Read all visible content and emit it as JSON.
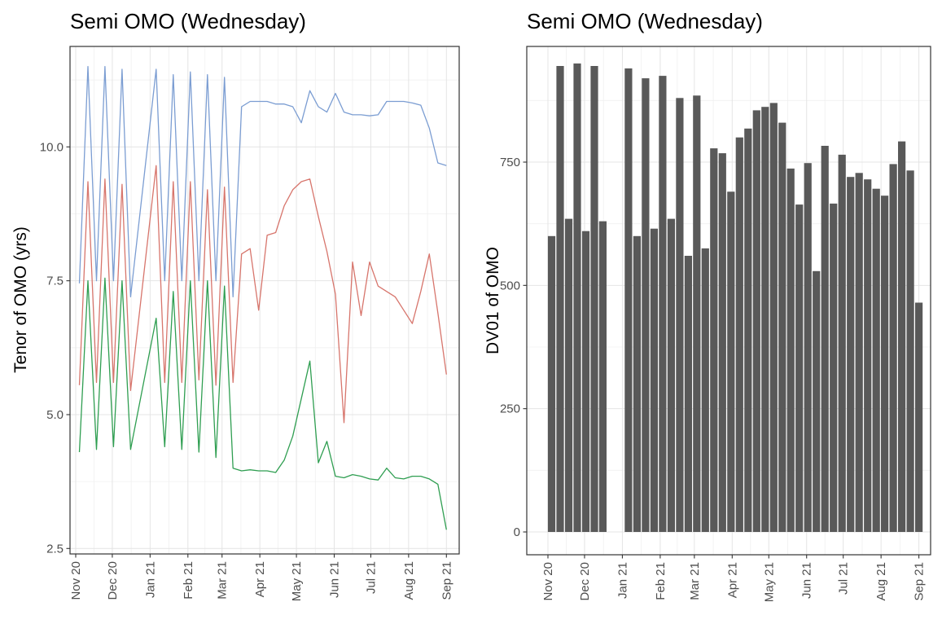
{
  "figure": {
    "background": "#ffffff",
    "panel_border_color": "#333333",
    "grid_major_color": "#e4e4e4",
    "grid_minor_color": "#f0f0f0",
    "tick_color": "#333333",
    "tick_label_color": "#4d4d4d",
    "title_color": "#000000"
  },
  "chart_data": [
    {
      "type": "line",
      "title": "Semi OMO (Wednesday)",
      "ylabel": "Tenor of OMO (yrs)",
      "xlabel": "",
      "legend": "none",
      "grid": true,
      "ytick_labels": [
        "2.5",
        "5.0",
        "7.5",
        "10.0"
      ],
      "ytick_values": [
        2.5,
        5.0,
        7.5,
        10.0
      ],
      "ylim": [
        2.4,
        11.87
      ],
      "x_tick_labels": [
        "Nov 20",
        "Dec 20",
        "Jan 21",
        "Feb 21",
        "Mar 21",
        "Apr 21",
        "May 21",
        "Jun 21",
        "Jul 21",
        "Aug 21",
        "Sep 21"
      ],
      "x_tick_days": [
        0,
        30,
        61,
        92,
        120,
        151,
        181,
        212,
        242,
        273,
        304
      ],
      "x_dates": [
        "2020-11-04",
        "2020-11-11",
        "2020-11-18",
        "2020-11-25",
        "2020-12-02",
        "2020-12-09",
        "2020-12-16",
        "2021-01-06",
        "2021-01-13",
        "2021-01-20",
        "2021-01-27",
        "2021-02-03",
        "2021-02-10",
        "2021-02-17",
        "2021-02-24",
        "2021-03-03",
        "2021-03-10",
        "2021-03-17",
        "2021-03-24",
        "2021-03-31",
        "2021-04-07",
        "2021-04-14",
        "2021-04-21",
        "2021-04-28",
        "2021-05-05",
        "2021-05-12",
        "2021-05-19",
        "2021-05-26",
        "2021-06-02",
        "2021-06-09",
        "2021-06-16",
        "2021-06-23",
        "2021-06-30",
        "2021-07-07",
        "2021-07-14",
        "2021-07-21",
        "2021-07-28",
        "2021-08-04",
        "2021-08-11",
        "2021-08-18",
        "2021-08-25",
        "2021-09-01"
      ],
      "x_days": [
        3,
        10,
        17,
        24,
        31,
        38,
        45,
        66,
        73,
        80,
        87,
        94,
        101,
        108,
        115,
        122,
        129,
        136,
        143,
        150,
        157,
        164,
        171,
        178,
        185,
        192,
        199,
        206,
        213,
        220,
        227,
        234,
        241,
        248,
        255,
        262,
        269,
        276,
        283,
        290,
        297,
        304
      ],
      "series": [
        {
          "name": "blue-line",
          "color": "#7b9dd2",
          "values": [
            7.45,
            11.5,
            7.5,
            11.5,
            7.5,
            11.45,
            7.2,
            11.45,
            7.5,
            11.35,
            7.5,
            11.4,
            7.5,
            11.35,
            7.5,
            11.3,
            7.2,
            10.75,
            10.85,
            10.85,
            10.85,
            10.8,
            10.8,
            10.75,
            10.45,
            11.05,
            10.75,
            10.65,
            11.0,
            10.65,
            10.6,
            10.6,
            10.58,
            10.6,
            10.85,
            10.85,
            10.85,
            10.82,
            10.78,
            10.35,
            9.7,
            9.65
          ]
        },
        {
          "name": "red-line",
          "color": "#d7756c",
          "values": [
            5.55,
            9.35,
            5.6,
            9.4,
            5.6,
            9.3,
            5.45,
            9.65,
            5.6,
            9.35,
            5.6,
            9.35,
            5.65,
            9.2,
            5.55,
            9.25,
            5.6,
            8.0,
            8.1,
            6.95,
            8.35,
            8.4,
            8.9,
            9.2,
            9.35,
            9.4,
            8.7,
            8.05,
            7.25,
            4.85,
            7.85,
            6.85,
            7.85,
            7.4,
            7.3,
            7.2,
            6.95,
            6.7,
            7.3,
            8.0,
            6.9,
            5.75
          ]
        },
        {
          "name": "green-line",
          "color": "#2f9e51",
          "values": [
            4.3,
            7.5,
            4.35,
            7.55,
            4.4,
            7.5,
            4.35,
            6.8,
            4.4,
            7.3,
            4.35,
            7.5,
            4.3,
            7.5,
            4.2,
            7.4,
            4.0,
            3.95,
            3.97,
            3.95,
            3.95,
            3.92,
            4.15,
            4.6,
            5.3,
            6.0,
            4.1,
            4.5,
            3.85,
            3.82,
            3.88,
            3.85,
            3.8,
            3.78,
            4.0,
            3.82,
            3.8,
            3.85,
            3.85,
            3.8,
            3.7,
            2.85
          ]
        }
      ]
    },
    {
      "type": "bar",
      "title": "Semi OMO (Wednesday)",
      "ylabel": "DV01 of OMO",
      "xlabel": "",
      "legend": "none",
      "grid": true,
      "bar_color": "#595959",
      "ytick_labels": [
        "0",
        "250",
        "500",
        "750"
      ],
      "ytick_values": [
        0,
        250,
        500,
        750
      ],
      "ylim": [
        -47,
        985
      ],
      "x_tick_labels": [
        "Nov 20",
        "Dec 20",
        "Jan 21",
        "Feb 21",
        "Mar 21",
        "Apr 21",
        "May 21",
        "Jun 21",
        "Jul 21",
        "Aug 21",
        "Sep 21"
      ],
      "x_tick_days": [
        0,
        30,
        61,
        92,
        120,
        151,
        181,
        212,
        242,
        273,
        304
      ],
      "x_dates": [
        "2020-11-04",
        "2020-11-11",
        "2020-11-18",
        "2020-11-25",
        "2020-12-02",
        "2020-12-09",
        "2020-12-16",
        "2021-01-06",
        "2021-01-13",
        "2021-01-20",
        "2021-01-27",
        "2021-02-03",
        "2021-02-10",
        "2021-02-17",
        "2021-02-24",
        "2021-03-03",
        "2021-03-10",
        "2021-03-17",
        "2021-03-24",
        "2021-03-31",
        "2021-04-07",
        "2021-04-14",
        "2021-04-21",
        "2021-04-28",
        "2021-05-05",
        "2021-05-12",
        "2021-05-19",
        "2021-05-26",
        "2021-06-02",
        "2021-06-09",
        "2021-06-16",
        "2021-06-23",
        "2021-06-30",
        "2021-07-07",
        "2021-07-14",
        "2021-07-21",
        "2021-07-28",
        "2021-08-04",
        "2021-08-11",
        "2021-08-18",
        "2021-08-25",
        "2021-09-01"
      ],
      "x_days": [
        3,
        10,
        17,
        24,
        31,
        38,
        45,
        66,
        73,
        80,
        87,
        94,
        101,
        108,
        115,
        122,
        129,
        136,
        143,
        150,
        157,
        164,
        171,
        178,
        185,
        192,
        199,
        206,
        213,
        220,
        227,
        234,
        241,
        248,
        255,
        262,
        269,
        276,
        283,
        290,
        297,
        304
      ],
      "values": [
        600,
        945,
        635,
        950,
        610,
        945,
        630,
        940,
        600,
        920,
        615,
        925,
        635,
        880,
        560,
        885,
        575,
        778,
        768,
        690,
        800,
        818,
        855,
        862,
        870,
        830,
        737,
        664,
        748,
        529,
        783,
        666,
        765,
        720,
        728,
        715,
        696,
        682,
        746,
        792,
        733,
        465
      ]
    }
  ]
}
